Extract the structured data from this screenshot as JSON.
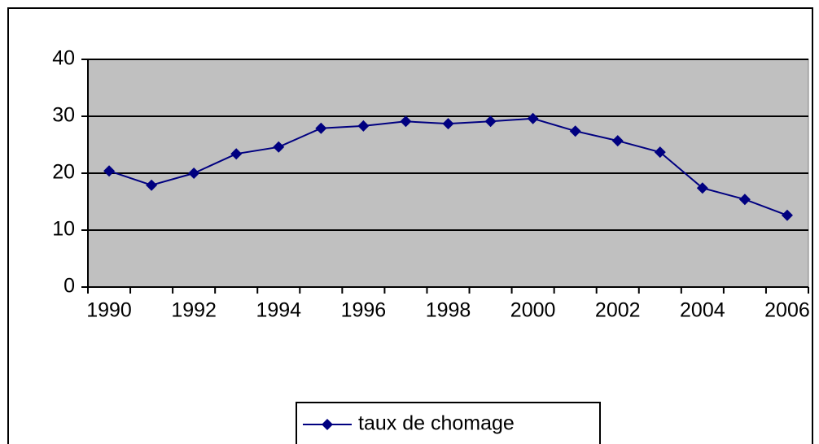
{
  "chart_data": {
    "type": "line",
    "categories": [
      "1990",
      null,
      "1992",
      null,
      "1994",
      null,
      "1996",
      null,
      "1998",
      null,
      "2000",
      null,
      "2002",
      null,
      "2004",
      null,
      "2006"
    ],
    "series": [
      {
        "name": "taux de chomage",
        "color": "#000080",
        "values": [
          20.4,
          17.9,
          20,
          23.4,
          24.6,
          27.9,
          28.3,
          29.1,
          28.7,
          29.1,
          29.6,
          27.4,
          25.7,
          23.7,
          17.4,
          15.4,
          12.6
        ]
      }
    ],
    "ylim": [
      0,
      40
    ],
    "yticks": [
      0,
      10,
      20,
      30,
      40
    ],
    "grid": true,
    "legend": "bottom"
  }
}
